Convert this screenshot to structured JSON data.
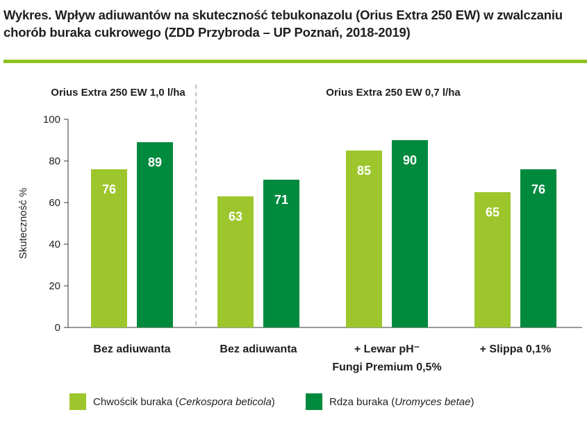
{
  "title_line1": "Wykres. Wpływ adiuwantów na skuteczność tebukonazolu (Orius Extra 250 EW) w zwalczaniu",
  "title_line2": "chorób buraka cukrowego (ZDD Przybroda – UP Poznań, 2018-2019)",
  "colors": {
    "light": "#9dc62c",
    "dark": "#008a3e",
    "accent_rule": "#8fc31f"
  },
  "chart_data": {
    "type": "bar",
    "group_headers": [
      "Orius Extra 250 EW 1,0 l/ha",
      "Orius Extra 250 EW 0,7 l/ha"
    ],
    "categories": [
      "Bez adiuwanta",
      "Bez adiuwanta",
      "+ Lewar pH⁻ Fungi Premium 0,5%",
      "+ Slippa 0,1%"
    ],
    "category_lines": [
      [
        "Bez adiuwanta"
      ],
      [
        "Bez adiuwanta"
      ],
      [
        "+ Lewar pH⁻",
        "Fungi Premium 0,5%"
      ],
      [
        "+ Slippa 0,1%"
      ]
    ],
    "series": [
      {
        "name": "Chwościk buraka (Cerkospora beticola)",
        "name_plain": "Chwościk buraka (",
        "name_italic": "Cerkospora beticola",
        "name_end": ")",
        "values": [
          76,
          63,
          85,
          65
        ],
        "color": "#9dc62c"
      },
      {
        "name": "Rdza buraka (Uromyces betae)",
        "name_plain": "Rdza buraka (",
        "name_italic": "Uromyces betae",
        "name_end": ")",
        "values": [
          89,
          71,
          90,
          76
        ],
        "color": "#008a3e"
      }
    ],
    "ylabel": "Skuteczność %",
    "ylim": [
      0,
      100
    ],
    "yticks": [
      0,
      20,
      40,
      60,
      80,
      100
    ],
    "grid": false,
    "legend_position": "bottom"
  }
}
